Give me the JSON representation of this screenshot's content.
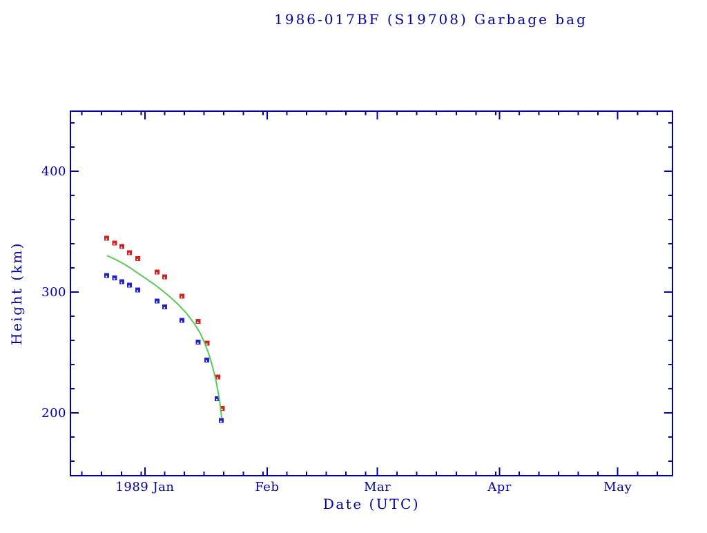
{
  "window": {
    "background": "#ffffff"
  },
  "chart_data": {
    "type": "scatter",
    "title": "1986-017BF (S19708) Garbage bag",
    "xlabel": "Date (UTC)",
    "ylabel": "Height (km)",
    "grid": false,
    "legend": false,
    "colors": {
      "axis": "#0000a0",
      "text": "#0000a0"
    },
    "x_axis": {
      "unit": "date",
      "day_zero": "1989-01-01",
      "visible_range": [
        "1988-12-13",
        "1989-05-15"
      ],
      "major_ticks": [
        {
          "label": "1989 Jan",
          "day": 0
        },
        {
          "label": "Feb",
          "day": 31
        },
        {
          "label": "Mar",
          "day": 59
        },
        {
          "label": "Apr",
          "day": 90
        },
        {
          "label": "May",
          "day": 120
        }
      ],
      "minor_tick_days": [
        -16,
        -11,
        -6,
        -1,
        5,
        10,
        15,
        20,
        25,
        30,
        36,
        41,
        46,
        51,
        56,
        64,
        69,
        74,
        79,
        84,
        89,
        95,
        100,
        105,
        110,
        115,
        125,
        130
      ]
    },
    "y_axis": {
      "unit": "km",
      "range": [
        148,
        450
      ],
      "major_ticks": [
        {
          "label": "400",
          "value": 400
        },
        {
          "label": "300",
          "value": 300
        },
        {
          "label": "200",
          "value": 200
        }
      ],
      "minor_tick_values": [
        160,
        180,
        220,
        240,
        260,
        280,
        320,
        340,
        360,
        380,
        420,
        440
      ]
    },
    "series": [
      {
        "name": "apogee-height",
        "type": "scatter",
        "marker": "square",
        "color": "#d42222",
        "points": [
          {
            "date": "1988-12-22",
            "day": -9.8,
            "km": 345
          },
          {
            "date": "1988-12-24",
            "day": -7.8,
            "km": 341
          },
          {
            "date": "1988-12-26",
            "day": -6.0,
            "km": 338
          },
          {
            "date": "1988-12-28",
            "day": -4.0,
            "km": 333
          },
          {
            "date": "1988-12-30",
            "day": -1.9,
            "km": 328
          },
          {
            "date": "1989-01-04",
            "day": 3.0,
            "km": 317
          },
          {
            "date": "1989-01-06",
            "day": 4.9,
            "km": 313
          },
          {
            "date": "1989-01-10",
            "day": 9.3,
            "km": 297
          },
          {
            "date": "1989-01-14",
            "day": 13.4,
            "km": 276
          },
          {
            "date": "1989-01-17",
            "day": 15.7,
            "km": 258
          },
          {
            "date": "1989-01-19",
            "day": 18.4,
            "km": 230
          },
          {
            "date": "1989-01-20",
            "day": 19.5,
            "km": 204
          }
        ]
      },
      {
        "name": "perigee-height",
        "type": "scatter",
        "marker": "square",
        "color": "#2222cc",
        "points": [
          {
            "date": "1988-12-22",
            "day": -9.8,
            "km": 314
          },
          {
            "date": "1988-12-24",
            "day": -7.8,
            "km": 312
          },
          {
            "date": "1988-12-26",
            "day": -6.0,
            "km": 309
          },
          {
            "date": "1988-12-28",
            "day": -4.0,
            "km": 306
          },
          {
            "date": "1988-12-30",
            "day": -1.9,
            "km": 302
          },
          {
            "date": "1989-01-04",
            "day": 3.0,
            "km": 293
          },
          {
            "date": "1989-01-06",
            "day": 4.9,
            "km": 288
          },
          {
            "date": "1989-01-10",
            "day": 9.3,
            "km": 277
          },
          {
            "date": "1989-01-14",
            "day": 13.4,
            "km": 259
          },
          {
            "date": "1989-01-17",
            "day": 15.6,
            "km": 244
          },
          {
            "date": "1989-01-19",
            "day": 18.2,
            "km": 212
          },
          {
            "date": "1989-01-20",
            "day": 19.3,
            "km": 194
          }
        ]
      },
      {
        "name": "predicted-decay-curve",
        "type": "line",
        "color": "#55cc55",
        "points": [
          {
            "day": -9.5,
            "km": 330
          },
          {
            "day": -7.5,
            "km": 327
          },
          {
            "day": -5.5,
            "km": 323.5
          },
          {
            "day": -3.5,
            "km": 319.5
          },
          {
            "day": -1.5,
            "km": 315
          },
          {
            "day": 0.5,
            "km": 310.5
          },
          {
            "day": 2.5,
            "km": 306
          },
          {
            "day": 4.5,
            "km": 301
          },
          {
            "day": 6.5,
            "km": 295.5
          },
          {
            "day": 8.5,
            "km": 289.5
          },
          {
            "day": 10.5,
            "km": 282.5
          },
          {
            "day": 12.5,
            "km": 274
          },
          {
            "day": 14,
            "km": 266
          },
          {
            "day": 15,
            "km": 259
          },
          {
            "day": 16,
            "km": 250.5
          },
          {
            "day": 17,
            "km": 240
          },
          {
            "day": 18,
            "km": 227
          },
          {
            "day": 18.7,
            "km": 215
          },
          {
            "day": 19.2,
            "km": 203
          },
          {
            "day": 19.45,
            "km": 196
          }
        ]
      }
    ]
  }
}
